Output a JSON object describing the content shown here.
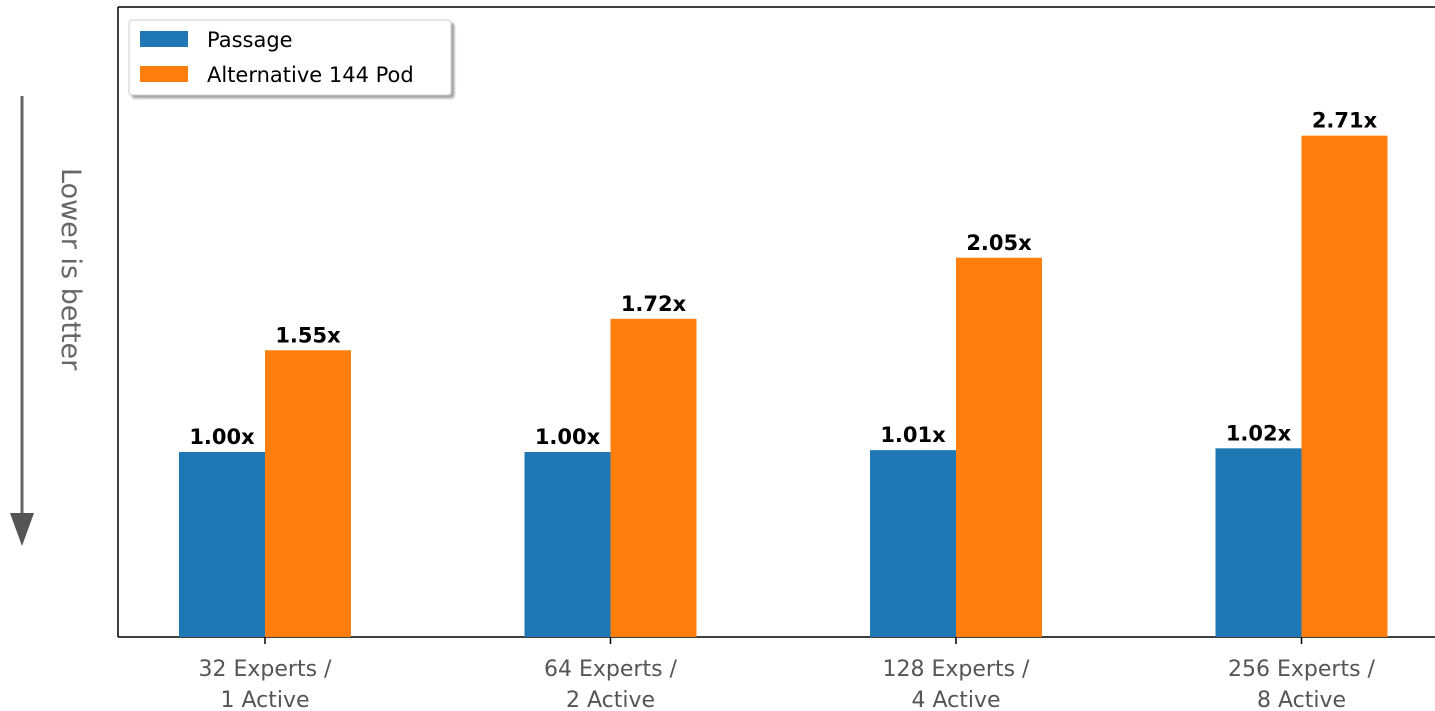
{
  "chart_data": {
    "type": "bar",
    "categories": [
      [
        "32 Experts /",
        "1 Active"
      ],
      [
        "64 Experts /",
        "2 Active"
      ],
      [
        "128 Experts /",
        "4 Active"
      ],
      [
        "256 Experts /",
        "8 Active"
      ]
    ],
    "series": [
      {
        "name": "Passage",
        "color": "#1f77b4",
        "values": [
          1.0,
          1.0,
          1.01,
          1.02
        ],
        "labels": [
          "1.00x",
          "1.00x",
          "1.01x",
          "1.02x"
        ]
      },
      {
        "name": "Alternative 144 Pod",
        "color": "#ff7f0e",
        "values": [
          1.55,
          1.72,
          2.05,
          2.71
        ],
        "labels": [
          "1.55x",
          "1.72x",
          "2.05x",
          "2.71x"
        ]
      }
    ],
    "title": "",
    "xlabel": "",
    "ylabel": "Lower is better",
    "ylim": [
      0,
      2.85
    ],
    "grid": false,
    "legend": "upper left"
  }
}
